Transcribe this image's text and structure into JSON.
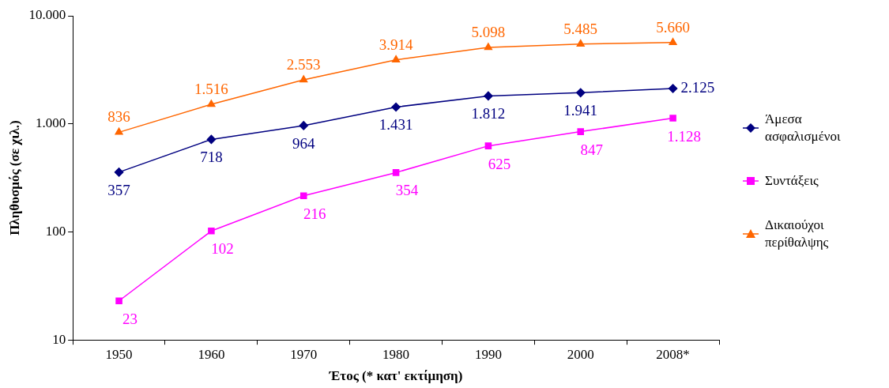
{
  "chart_data": {
    "type": "line",
    "xlabel": "Έτος (* κατ' εκτίμηση)",
    "ylabel": "Πληθυσμός (σε χιλ.)",
    "categories": [
      "1950",
      "1960",
      "1970",
      "1980",
      "1990",
      "2000",
      "2008*"
    ],
    "log": "y",
    "ylim": [
      10,
      10000
    ],
    "yticks": [
      10,
      100,
      {
        "value": 1000,
        "label": "1.000"
      },
      {
        "value": 10000,
        "label": "10.000"
      }
    ],
    "grid": false,
    "legend": "right",
    "series": [
      {
        "name": "Άμεσα ασφαλισμένοι",
        "color": "#000080",
        "marker": "diamond",
        "values": [
          357,
          718,
          964,
          1431,
          1812,
          1941,
          2125
        ],
        "value_labels": [
          "357",
          "718",
          "964",
          "1.431",
          "1.812",
          "1.941",
          "2.125"
        ]
      },
      {
        "name": "Συντάξεις",
        "color": "#ff00ff",
        "marker": "square",
        "values": [
          23,
          102,
          216,
          354,
          625,
          847,
          1128
        ],
        "value_labels": [
          "23",
          "102",
          "216",
          "354",
          "625",
          "847",
          "1.128"
        ]
      },
      {
        "name": "Δικαιούχοι περίθαλψης",
        "color": "#ff6600",
        "marker": "triangle",
        "values": [
          836,
          1516,
          2553,
          3914,
          5098,
          5485,
          5660
        ],
        "value_labels": [
          "836",
          "1.516",
          "2.553",
          "3.914",
          "5.098",
          "5.485",
          "5.660"
        ]
      }
    ]
  }
}
